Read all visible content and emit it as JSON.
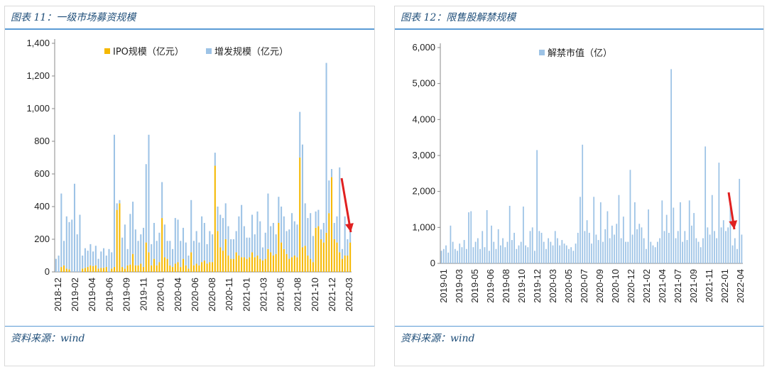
{
  "left_panel": {
    "title": "图表 11：一级市场募资规模",
    "source": "资料来源：wind"
  },
  "right_panel": {
    "title": "图表 12：限售股解禁规模",
    "source": "资料来源：wind"
  },
  "colors": {
    "ipo": "#f5b800",
    "secondary": "#9dc3e6",
    "ban": "#9dc3e6",
    "arrow": "#e02020",
    "rule": "#5a9bd5",
    "title": "#1f4e79"
  },
  "chart_data": [
    {
      "type": "bar",
      "title": "",
      "legend_position": "top",
      "ylim": [
        0,
        1400
      ],
      "y_ticks": [
        "0",
        "200",
        "400",
        "600",
        "800",
        "1,000",
        "1,200",
        "1,400"
      ],
      "x_tick_labels": [
        "2018-12",
        "2019-02",
        "2019-04",
        "2019-06",
        "2019-09",
        "2019-11",
        "2020-01",
        "2020-04",
        "2020-06",
        "2020-08",
        "2020-11",
        "2021-01",
        "2021-03",
        "2021-05",
        "2021-08",
        "2021-10",
        "2021-12",
        "2022-03"
      ],
      "series": [
        {
          "name": "IPO规模（亿元）",
          "values": [
            0,
            0,
            30,
            40,
            20,
            15,
            0,
            0,
            0,
            0,
            20,
            25,
            30,
            40,
            35,
            40,
            20,
            25,
            25,
            30,
            0,
            20,
            30,
            380,
            420,
            30,
            20,
            40,
            45,
            110,
            40,
            40,
            50,
            30,
            180,
            120,
            40,
            80,
            40,
            60,
            330,
            90,
            80,
            40,
            30,
            50,
            60,
            30,
            80,
            40,
            20,
            120,
            40,
            50,
            40,
            60,
            70,
            50,
            60,
            60,
            650,
            250,
            150,
            130,
            200,
            100,
            80,
            80,
            120,
            100,
            90,
            90,
            80,
            90,
            120,
            90,
            100,
            80,
            70,
            80,
            140,
            120,
            100,
            110,
            300,
            180,
            140,
            110,
            80,
            90,
            100,
            90,
            700,
            150,
            160,
            100,
            80,
            60,
            270,
            280,
            200,
            180,
            240,
            360,
            580,
            200,
            180,
            120,
            80,
            100,
            100,
            180
          ]
        },
        {
          "name": "增发规模（亿元）",
          "values": [
            80,
            100,
            450,
            150,
            320,
            290,
            320,
            540,
            230,
            350,
            80,
            120,
            100,
            130,
            90,
            120,
            60,
            100,
            120,
            70,
            140,
            100,
            810,
            40,
            20,
            180,
            270,
            100,
            310,
            320,
            220,
            150,
            180,
            240,
            480,
            720,
            130,
            220,
            150,
            180,
            220,
            200,
            110,
            150,
            110,
            280,
            260,
            160,
            190,
            140,
            80,
            320,
            150,
            200,
            140,
            280,
            230,
            120,
            190,
            170,
            80,
            150,
            200,
            200,
            220,
            180,
            120,
            120,
            130,
            240,
            320,
            190,
            130,
            120,
            230,
            140,
            270,
            230,
            80,
            160,
            340,
            160,
            200,
            120,
            160,
            220,
            200,
            140,
            180,
            270,
            210,
            200,
            280,
            630,
            260,
            230,
            280,
            160,
            100,
            100,
            60,
            120,
            1040,
            200,
            50,
            100,
            160,
            520,
            60,
            240,
            100,
            100
          ]
        }
      ]
    },
    {
      "type": "bar",
      "title": "",
      "legend_position": "top",
      "ylim": [
        0,
        6000
      ],
      "y_ticks": [
        "0",
        "1,000",
        "2,000",
        "3,000",
        "4,000",
        "5,000",
        "6,000"
      ],
      "x_tick_labels": [
        "2019-01",
        "2019-03",
        "2019-05",
        "2019-06",
        "2019-08",
        "2019-10",
        "2019-12",
        "2020-03",
        "2020-05",
        "2020-07",
        "2020-09",
        "2020-10",
        "2020-12",
        "2021-02",
        "2021-04",
        "2021-07",
        "2021-09",
        "2021-11",
        "2022-01",
        "2022-04"
      ],
      "series": [
        {
          "name": "解禁市值（亿）",
          "values": [
            350,
            400,
            500,
            300,
            1050,
            600,
            400,
            350,
            550,
            450,
            650,
            400,
            1420,
            1450,
            450,
            600,
            700,
            400,
            900,
            450,
            1480,
            350,
            1050,
            600,
            400,
            950,
            500,
            700,
            450,
            600,
            1600,
            650,
            850,
            400,
            500,
            600,
            1580,
            500,
            450,
            900,
            1000,
            350,
            3150,
            900,
            850,
            600,
            400,
            700,
            600,
            500,
            900,
            700,
            500,
            650,
            550,
            500,
            400,
            450,
            350,
            550,
            850,
            1850,
            3300,
            900,
            1200,
            850,
            550,
            1850,
            800,
            650,
            1700,
            600,
            950,
            1450,
            700,
            1050,
            800,
            1100,
            1900,
            700,
            1300,
            600,
            600,
            2600,
            800,
            1700,
            950,
            1100,
            1000,
            700,
            400,
            1500,
            600,
            500,
            450,
            600,
            700,
            1750,
            900,
            1350,
            850,
            5400,
            1550,
            700,
            900,
            1700,
            600,
            900,
            650,
            1750,
            1050,
            1400,
            700,
            600,
            450,
            700,
            3250,
            1000,
            800,
            1900,
            900,
            700,
            2800,
            1000,
            1200,
            900,
            1000,
            1600,
            500,
            700,
            400,
            2350,
            800
          ]
        }
      ]
    }
  ]
}
